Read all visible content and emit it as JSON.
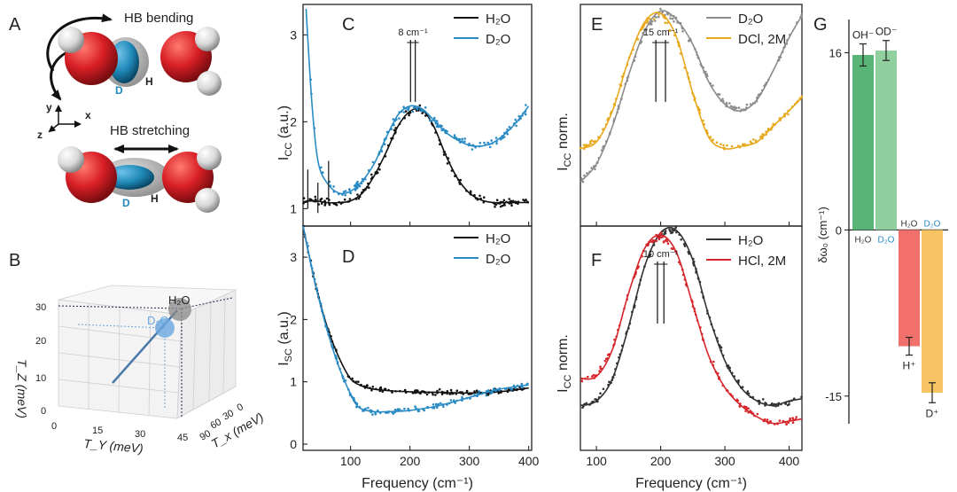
{
  "figure": {
    "panelA": {
      "label": "A",
      "bending_label": "HB bending",
      "stretching_label": "HB stretching",
      "atom_labels": [
        "D",
        "H",
        "D",
        "H"
      ],
      "axes_labels": [
        "y",
        "x",
        "z"
      ],
      "colors": {
        "oxygen": "#d81f26",
        "hydrogen": "#dcdcdc",
        "deuterium": "#1f88b8",
        "bond_shell": "#9a9a9a"
      }
    },
    "panelB": {
      "label": "B",
      "xlabel": "T_Y (meV)",
      "ylabel": "T_x (meV)",
      "zlabel": "T_Z (meV)",
      "tz_ticks": [
        "0",
        "10",
        "20",
        "30"
      ],
      "ty_ticks": [
        "0",
        "15",
        "30",
        "45"
      ],
      "tx_ticks": [
        "90",
        "60",
        "30",
        "0"
      ],
      "points": [
        {
          "name": "H2O",
          "label": "H₂O",
          "color": "#888888"
        },
        {
          "name": "D2O",
          "label": "D₂O",
          "color": "#6aa8e0"
        }
      ]
    },
    "chart_data": [
      {
        "panel": "C",
        "type": "line",
        "xlim": [
          20,
          405
        ],
        "ylim": [
          0.8,
          3.35
        ],
        "xticks": [
          100,
          200,
          300,
          400
        ],
        "yticks": [
          1,
          2,
          3
        ],
        "ylabel": "I_CC (a.u.)",
        "xlabel": "",
        "annotation": "8 cm⁻¹",
        "series": [
          {
            "name": "H₂O",
            "color": "#111111",
            "fit_x": [
              20,
              40,
              60,
              80,
              100,
              120,
              140,
              160,
              180,
              200,
              220,
              240,
              260,
              280,
              300,
              320,
              340,
              360,
              380,
              400
            ],
            "fit_y": [
              1.08,
              1.09,
              1.07,
              1.07,
              1.09,
              1.18,
              1.38,
              1.65,
              1.95,
              2.12,
              2.14,
              1.95,
              1.62,
              1.35,
              1.18,
              1.1,
              1.07,
              1.07,
              1.07,
              1.07
            ]
          },
          {
            "name": "D₂O",
            "color": "#2a8bc4",
            "fit_x": [
              25,
              35,
              45,
              60,
              80,
              100,
              120,
              140,
              160,
              180,
              200,
              220,
              240,
              260,
              280,
              300,
              320,
              340,
              360,
              380,
              400
            ],
            "fit_y": [
              3.3,
              2.2,
              1.55,
              1.3,
              1.18,
              1.2,
              1.32,
              1.52,
              1.82,
              2.08,
              2.18,
              2.15,
              2.02,
              1.88,
              1.79,
              1.73,
              1.72,
              1.76,
              1.86,
              2.0,
              2.18
            ]
          }
        ]
      },
      {
        "panel": "D",
        "type": "line",
        "xlim": [
          20,
          405
        ],
        "ylim": [
          -0.1,
          3.5
        ],
        "xticks": [
          100,
          200,
          300,
          400
        ],
        "yticks": [
          0,
          1,
          2,
          3
        ],
        "ylabel": "I_SC (a.u.)",
        "xlabel": "Frequency (cm⁻¹)",
        "series": [
          {
            "name": "H₂O",
            "color": "#111111",
            "fit_x": [
              20,
              40,
              60,
              80,
              100,
              120,
              140,
              160,
              200,
              250,
              300,
              350,
              400
            ],
            "fit_y": [
              3.5,
              2.6,
              1.9,
              1.4,
              1.05,
              0.93,
              0.88,
              0.86,
              0.84,
              0.83,
              0.82,
              0.84,
              0.9
            ]
          },
          {
            "name": "D₂O",
            "color": "#2a8bc4",
            "fit_x": [
              20,
              40,
              60,
              80,
              100,
              110,
              120,
              140,
              160,
              200,
              250,
              300,
              350,
              400
            ],
            "fit_y": [
              3.5,
              2.6,
              1.85,
              1.25,
              0.8,
              0.63,
              0.56,
              0.52,
              0.52,
              0.54,
              0.62,
              0.75,
              0.88,
              0.95
            ]
          }
        ]
      },
      {
        "panel": "E",
        "type": "line",
        "xlim": [
          75,
          420
        ],
        "ylim": [
          0,
          1
        ],
        "xticks": [
          100,
          200,
          300,
          400
        ],
        "yticks": [],
        "ylabel": "I_CC norm.",
        "xlabel": "",
        "annotation": "15 cm⁻¹",
        "series": [
          {
            "name": "D₂O",
            "color": "#8c8c8c",
            "fit_x": [
              75,
              100,
              125,
              150,
              175,
              200,
              225,
              250,
              275,
              300,
              325,
              350,
              375,
              400,
              420
            ],
            "fit_y": [
              0.2,
              0.28,
              0.45,
              0.68,
              0.88,
              0.97,
              0.93,
              0.82,
              0.65,
              0.55,
              0.52,
              0.57,
              0.7,
              0.85,
              0.95
            ]
          },
          {
            "name": "DCl, 2M",
            "color": "#e8a81c",
            "fit_x": [
              75,
              100,
              125,
              150,
              175,
              200,
              225,
              250,
              275,
              300,
              325,
              350,
              375,
              400,
              420
            ],
            "fit_y": [
              0.35,
              0.38,
              0.52,
              0.75,
              0.92,
              0.96,
              0.85,
              0.6,
              0.4,
              0.35,
              0.36,
              0.38,
              0.45,
              0.52,
              0.58
            ]
          }
        ]
      },
      {
        "panel": "F",
        "type": "line",
        "xlim": [
          75,
          420
        ],
        "ylim": [
          0,
          1
        ],
        "xticks": [
          100,
          200,
          300,
          400
        ],
        "yticks": [],
        "ylabel": "I_CC norm.",
        "xlabel": "Frequency (cm⁻¹)",
        "annotation": "10 cm⁻¹",
        "series": [
          {
            "name": "H₂O",
            "color": "#333333",
            "fit_x": [
              75,
              100,
              125,
              150,
              175,
              200,
              225,
              250,
              275,
              300,
              325,
              350,
              375,
              400,
              420
            ],
            "fit_y": [
              0.2,
              0.22,
              0.32,
              0.55,
              0.82,
              0.97,
              0.98,
              0.85,
              0.6,
              0.4,
              0.28,
              0.22,
              0.2,
              0.22,
              0.23
            ]
          },
          {
            "name": "HCl, 2M",
            "color": "#d6262b",
            "fit_x": [
              75,
              100,
              125,
              150,
              175,
              200,
              225,
              250,
              275,
              300,
              325,
              350,
              375,
              400,
              420
            ],
            "fit_y": [
              0.32,
              0.33,
              0.45,
              0.7,
              0.9,
              0.96,
              0.88,
              0.65,
              0.42,
              0.28,
              0.2,
              0.15,
              0.12,
              0.13,
              0.14
            ]
          }
        ]
      },
      {
        "panel": "G",
        "type": "bar",
        "ylabel": "δω₀ (cm⁻¹)",
        "ylim": [
          -17.5,
          19
        ],
        "yticks": [
          16,
          0,
          -15
        ],
        "bars": [
          {
            "name": "H₂O",
            "value": 15.8,
            "err": 1.0,
            "color": "#59b478",
            "top_label": "OH⁻",
            "axis_label": "H₂O",
            "axis_label_color": "#333333"
          },
          {
            "name": "D₂O",
            "value": 16.2,
            "err": 0.9,
            "color": "#8fd09e",
            "top_label": "OD⁻",
            "axis_label": "D₂O",
            "axis_label_color": "#2a8bc4"
          },
          {
            "name": "H₂O acid",
            "value": -10.5,
            "err": 0.8,
            "color": "#f2706c",
            "top_label": "H⁺",
            "axis_label": "H₂O",
            "axis_label_color": "#333333"
          },
          {
            "name": "D₂O acid",
            "value": -14.7,
            "err": 0.9,
            "color": "#f7c463",
            "top_label": "D⁺",
            "axis_label": "D₂O",
            "axis_label_color": "#2a8bc4"
          }
        ]
      }
    ]
  }
}
